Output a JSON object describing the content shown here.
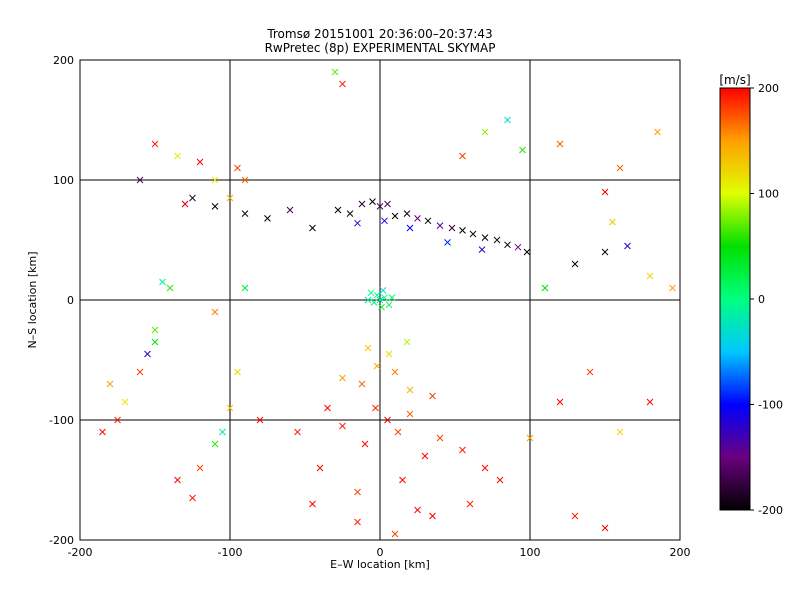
{
  "chart_data": {
    "type": "scatter",
    "title": "Tromsø 20151001 20:36:00–20:37:43",
    "subtitle": "RwPretec (8p) EXPERIMENTAL SKYMAP",
    "xlabel": "E–W location [km]",
    "ylabel": "N–S location [km]",
    "xlim": [
      -200,
      200
    ],
    "ylim": [
      -200,
      200
    ],
    "x_ticks": [
      -200,
      -100,
      0,
      100,
      200
    ],
    "y_ticks": [
      -200,
      -100,
      0,
      100,
      200
    ],
    "grid": true,
    "colorbar": {
      "label": "[m/s]",
      "range": [
        -200,
        200
      ],
      "ticks": [
        200,
        100,
        0,
        -100,
        -200
      ],
      "colormap": [
        "#000000",
        "#6a0080",
        "#0000ff",
        "#00c8ff",
        "#00ff80",
        "#00e000",
        "#e0ff00",
        "#ffa000",
        "#ff0000"
      ]
    },
    "marker_legend": "small points = weak detections, crosses = strong detections; color = line-of-sight velocity",
    "series": [
      {
        "points": [
          [
            -28,
            75,
            -200,
            "x"
          ],
          [
            -20,
            72,
            -190,
            "x"
          ],
          [
            -12,
            80,
            -180,
            "x"
          ],
          [
            -5,
            82,
            -200,
            "x"
          ],
          [
            0,
            78,
            -170,
            "x"
          ],
          [
            5,
            80,
            -160,
            "x"
          ],
          [
            10,
            70,
            -200,
            "x"
          ],
          [
            18,
            72,
            -190,
            "x"
          ],
          [
            25,
            68,
            -150,
            "x"
          ],
          [
            32,
            66,
            -200,
            "x"
          ],
          [
            40,
            62,
            -140,
            "x"
          ],
          [
            48,
            60,
            -180,
            "x"
          ],
          [
            55,
            58,
            -200,
            "x"
          ],
          [
            62,
            55,
            -190,
            "x"
          ],
          [
            70,
            52,
            -200,
            "x"
          ],
          [
            78,
            50,
            -180,
            "x"
          ],
          [
            85,
            46,
            -200,
            "x"
          ],
          [
            92,
            44,
            -150,
            "x"
          ],
          [
            98,
            40,
            -200,
            "x"
          ],
          [
            -60,
            75,
            -170,
            "x"
          ],
          [
            -75,
            68,
            -200,
            "x"
          ],
          [
            -90,
            72,
            -190,
            "x"
          ],
          [
            -110,
            78,
            -200,
            "x"
          ],
          [
            -125,
            85,
            -180,
            "x"
          ],
          [
            -45,
            60,
            -200,
            "x"
          ],
          [
            -15,
            64,
            -120,
            "x"
          ],
          [
            3,
            66,
            -110,
            "x"
          ],
          [
            20,
            60,
            -100,
            "x"
          ],
          [
            45,
            48,
            -90,
            "x"
          ],
          [
            68,
            42,
            -120,
            "x"
          ],
          [
            -2,
            4,
            -10,
            "x"
          ],
          [
            3,
            2,
            0,
            "x"
          ],
          [
            -4,
            -2,
            10,
            "x"
          ],
          [
            0,
            0,
            -20,
            "x"
          ],
          [
            6,
            -4,
            20,
            "x"
          ],
          [
            -6,
            6,
            0,
            "x"
          ],
          [
            2,
            8,
            -30,
            "x"
          ],
          [
            8,
            2,
            10,
            "x"
          ],
          [
            -8,
            0,
            -10,
            "x"
          ],
          [
            1,
            -6,
            30,
            "x"
          ],
          [
            -3,
            -90,
            190,
            "x"
          ],
          [
            5,
            -100,
            200,
            "x"
          ],
          [
            12,
            -110,
            180,
            "x"
          ],
          [
            -10,
            -120,
            200,
            "x"
          ],
          [
            20,
            -95,
            170,
            "x"
          ],
          [
            30,
            -130,
            200,
            "x"
          ],
          [
            -25,
            -105,
            190,
            "x"
          ],
          [
            40,
            -115,
            180,
            "x"
          ],
          [
            -40,
            -140,
            200,
            "x"
          ],
          [
            55,
            -125,
            190,
            "x"
          ],
          [
            15,
            -150,
            200,
            "x"
          ],
          [
            -15,
            -160,
            180,
            "x"
          ],
          [
            70,
            -140,
            200,
            "x"
          ],
          [
            -55,
            -110,
            190,
            "x"
          ],
          [
            25,
            -175,
            200,
            "x"
          ],
          [
            -2,
            -55,
            150,
            "x"
          ],
          [
            10,
            -60,
            160,
            "x"
          ],
          [
            -12,
            -70,
            170,
            "x"
          ],
          [
            20,
            -75,
            140,
            "x"
          ],
          [
            -25,
            -65,
            150,
            "x"
          ],
          [
            35,
            -80,
            180,
            "x"
          ],
          [
            -35,
            -90,
            200,
            "x"
          ],
          [
            6,
            -45,
            120,
            "x"
          ],
          [
            -8,
            -40,
            130,
            "x"
          ],
          [
            18,
            -35,
            90,
            "x"
          ],
          [
            -30,
            190,
            70,
            "x"
          ],
          [
            -25,
            180,
            190,
            "x"
          ],
          [
            -90,
            10,
            30,
            "x"
          ],
          [
            -130,
            80,
            -40,
            "x"
          ],
          [
            -130,
            80,
            200,
            "x"
          ],
          [
            -120,
            115,
            200,
            "x"
          ],
          [
            -95,
            110,
            180,
            "x"
          ],
          [
            -90,
            100,
            170,
            "x"
          ],
          [
            -185,
            -110,
            200,
            "x"
          ],
          [
            -175,
            -100,
            190,
            "x"
          ],
          [
            -160,
            -60,
            180,
            "x"
          ],
          [
            -150,
            -25,
            70,
            "x"
          ],
          [
            -140,
            10,
            60,
            "x"
          ],
          [
            -145,
            15,
            -10,
            "x"
          ],
          [
            -180,
            -70,
            150,
            "x"
          ],
          [
            -170,
            -85,
            110,
            "x"
          ],
          [
            -155,
            -45,
            -120,
            "x"
          ],
          [
            -150,
            -35,
            50,
            "x"
          ],
          [
            -110,
            -10,
            160,
            "x"
          ],
          [
            -95,
            -60,
            120,
            "x"
          ],
          [
            -80,
            -100,
            200,
            "x"
          ],
          [
            -100,
            -90,
            130,
            "x"
          ],
          [
            -110,
            -120,
            60,
            "x"
          ],
          [
            -105,
            -110,
            -20,
            "x"
          ],
          [
            -120,
            -140,
            180,
            "x"
          ],
          [
            -135,
            -150,
            200,
            "x"
          ],
          [
            -125,
            -165,
            190,
            "x"
          ],
          [
            -45,
            -170,
            200,
            "x"
          ],
          [
            -15,
            -185,
            190,
            "x"
          ],
          [
            10,
            -195,
            180,
            "x"
          ],
          [
            35,
            -180,
            200,
            "x"
          ],
          [
            60,
            -170,
            190,
            "x"
          ],
          [
            80,
            -150,
            200,
            "x"
          ],
          [
            100,
            -115,
            150,
            "x"
          ],
          [
            120,
            -85,
            200,
            "x"
          ],
          [
            140,
            -60,
            180,
            "x"
          ],
          [
            160,
            -110,
            120,
            "x"
          ],
          [
            180,
            -85,
            200,
            "x"
          ],
          [
            150,
            -190,
            200,
            "x"
          ],
          [
            130,
            -180,
            190,
            "x"
          ],
          [
            110,
            10,
            50,
            "x"
          ],
          [
            130,
            30,
            -200,
            "x"
          ],
          [
            150,
            40,
            -190,
            "x"
          ],
          [
            165,
            45,
            -120,
            "x"
          ],
          [
            180,
            20,
            120,
            "x"
          ],
          [
            195,
            10,
            150,
            "x"
          ],
          [
            185,
            140,
            150,
            "x"
          ],
          [
            160,
            110,
            170,
            "x"
          ],
          [
            150,
            90,
            200,
            "x"
          ],
          [
            155,
            65,
            130,
            "x"
          ],
          [
            120,
            130,
            170,
            "x"
          ],
          [
            95,
            125,
            60,
            "x"
          ],
          [
            85,
            150,
            -30,
            "x"
          ],
          [
            70,
            140,
            80,
            "x"
          ],
          [
            55,
            120,
            180,
            "x"
          ],
          [
            -150,
            130,
            190,
            "x"
          ],
          [
            -135,
            120,
            110,
            "x"
          ],
          [
            -160,
            100,
            -160,
            "x"
          ],
          [
            -110,
            100,
            110,
            "x"
          ],
          [
            -100,
            85,
            140,
            "x"
          ]
        ]
      }
    ]
  }
}
